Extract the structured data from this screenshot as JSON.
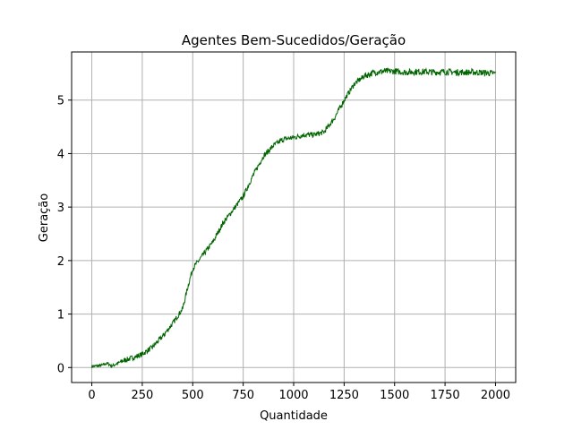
{
  "chart_data": {
    "type": "line",
    "title": "Agentes Bem-Sucedidos/Geração",
    "xlabel": "Quantidade",
    "ylabel": "Geração",
    "xlim": [
      -100,
      2100
    ],
    "ylim": [
      -0.28,
      5.9
    ],
    "x_ticks": [
      0,
      250,
      500,
      750,
      1000,
      1250,
      1500,
      1750,
      2000
    ],
    "x_tick_labels": [
      "0",
      "250",
      "500",
      "750",
      "1000",
      "1250",
      "1500",
      "1750",
      "2000"
    ],
    "y_ticks": [
      0,
      1,
      2,
      3,
      4,
      5
    ],
    "y_tick_labels": [
      "0",
      "1",
      "2",
      "3",
      "4",
      "5"
    ],
    "grid": true,
    "line_color": "#006400",
    "grid_color": "#b0b0b0",
    "series": [
      {
        "x": [
          0,
          50,
          75,
          100,
          150,
          200,
          250,
          300,
          350,
          400,
          450,
          475,
          500,
          550,
          600,
          650,
          700,
          750,
          800,
          850,
          900,
          950,
          1000,
          1050,
          1100,
          1150,
          1200,
          1250,
          1300,
          1350,
          1400,
          1450,
          1500,
          1550,
          1600,
          1650,
          1700,
          1750,
          1800,
          1850,
          1900,
          1950,
          2000
        ],
        "y": [
          0.02,
          0.04,
          0.08,
          0.03,
          0.12,
          0.18,
          0.25,
          0.38,
          0.58,
          0.82,
          1.1,
          1.5,
          1.85,
          2.1,
          2.35,
          2.7,
          2.95,
          3.2,
          3.6,
          3.95,
          4.15,
          4.27,
          4.3,
          4.35,
          4.35,
          4.4,
          4.65,
          5.0,
          5.3,
          5.45,
          5.52,
          5.54,
          5.54,
          5.52,
          5.53,
          5.53,
          5.52,
          5.53,
          5.52,
          5.52,
          5.52,
          5.51,
          5.5
        ]
      }
    ]
  }
}
